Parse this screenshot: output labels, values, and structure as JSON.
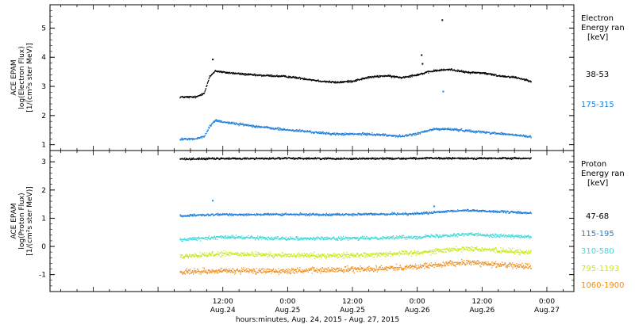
{
  "figure": {
    "xlabel": "hours:minutes, Aug. 24, 2015 - Aug. 27, 2015",
    "x_range": [
      "2015-08-23T04:00",
      "2015-08-27T05:00"
    ],
    "x_ticks": [
      {
        "time": "2015-08-24T12:00",
        "top": "12:00",
        "bottom": "Aug.24"
      },
      {
        "time": "2015-08-25T00:00",
        "top": "0:00",
        "bottom": "Aug.25"
      },
      {
        "time": "2015-08-25T12:00",
        "top": "12:00",
        "bottom": "Aug.25"
      },
      {
        "time": "2015-08-26T00:00",
        "top": "0:00",
        "bottom": "Aug.26"
      },
      {
        "time": "2015-08-26T12:00",
        "top": "12:00",
        "bottom": "Aug.26"
      },
      {
        "time": "2015-08-27T00:00",
        "top": "0:00",
        "bottom": "Aug.27"
      }
    ]
  },
  "chart_data": [
    {
      "type": "scatter",
      "ylabel_lines": [
        "ACE EPAM",
        "log(Electron Flux)",
        "[1/(cm²s ster MeV)]"
      ],
      "ylim": [
        0.8,
        5.8
      ],
      "yticks": [
        1,
        2,
        3,
        4,
        5
      ],
      "legend_title": [
        "Electron",
        "Energy ran",
        "[keV]"
      ],
      "series": [
        {
          "name": "38-53",
          "color": "#000000",
          "x": [
            "2015-08-24T04:00",
            "2015-08-24T07:00",
            "2015-08-24T08:30",
            "2015-08-24T09:30",
            "2015-08-24T10:30",
            "2015-08-24T12:00",
            "2015-08-24T15:00",
            "2015-08-24T18:00",
            "2015-08-24T21:00",
            "2015-08-25T00:00",
            "2015-08-25T03:00",
            "2015-08-25T06:00",
            "2015-08-25T09:00",
            "2015-08-25T12:00",
            "2015-08-25T15:00",
            "2015-08-25T18:00",
            "2015-08-25T21:00",
            "2015-08-26T00:00",
            "2015-08-26T03:00",
            "2015-08-26T06:00",
            "2015-08-26T09:00",
            "2015-08-26T12:00",
            "2015-08-26T15:00",
            "2015-08-26T18:00",
            "2015-08-26T21:00"
          ],
          "y": [
            2.65,
            2.65,
            2.8,
            3.35,
            3.55,
            3.5,
            3.45,
            3.4,
            3.38,
            3.35,
            3.28,
            3.2,
            3.15,
            3.2,
            3.33,
            3.38,
            3.32,
            3.42,
            3.55,
            3.6,
            3.5,
            3.48,
            3.38,
            3.33,
            3.2
          ]
        },
        {
          "name": "175-315",
          "color": "#1f7fd9",
          "x": [
            "2015-08-24T04:00",
            "2015-08-24T07:00",
            "2015-08-24T08:30",
            "2015-08-24T09:30",
            "2015-08-24T10:30",
            "2015-08-24T12:00",
            "2015-08-24T15:00",
            "2015-08-24T18:00",
            "2015-08-24T21:00",
            "2015-08-25T00:00",
            "2015-08-25T03:00",
            "2015-08-25T06:00",
            "2015-08-25T09:00",
            "2015-08-25T12:00",
            "2015-08-25T15:00",
            "2015-08-25T18:00",
            "2015-08-25T21:00",
            "2015-08-26T00:00",
            "2015-08-26T03:00",
            "2015-08-26T06:00",
            "2015-08-26T09:00",
            "2015-08-26T12:00",
            "2015-08-26T15:00",
            "2015-08-26T18:00",
            "2015-08-26T21:00"
          ],
          "y": [
            1.2,
            1.22,
            1.3,
            1.65,
            1.85,
            1.8,
            1.72,
            1.65,
            1.58,
            1.52,
            1.48,
            1.42,
            1.38,
            1.38,
            1.38,
            1.35,
            1.3,
            1.4,
            1.55,
            1.55,
            1.5,
            1.45,
            1.4,
            1.35,
            1.28
          ]
        }
      ],
      "spikes": [
        {
          "x": "2015-08-24T10:00",
          "y": 3.95,
          "color": "#000000"
        },
        {
          "x": "2015-08-26T00:40",
          "y": 4.1,
          "color": "#000000"
        },
        {
          "x": "2015-08-26T00:50",
          "y": 3.8,
          "color": "#000000"
        },
        {
          "x": "2015-08-26T04:30",
          "y": 5.3,
          "color": "#000000"
        },
        {
          "x": "2015-08-26T04:40",
          "y": 2.85,
          "color": "#1f7fd9"
        }
      ]
    },
    {
      "type": "scatter",
      "ylabel_lines": [
        "ACE EPAM",
        "log(Proton Flux)",
        "[1/(cm²s ster MeV)]"
      ],
      "ylim": [
        -1.6,
        3.4
      ],
      "yticks": [
        -1,
        0,
        1,
        2,
        3
      ],
      "legend_title": [
        "Proton",
        "Energy ran",
        "[keV]"
      ],
      "series": [
        {
          "name": "47-68",
          "color": "#000000",
          "x": [
            "2015-08-24T04:00",
            "2015-08-24T12:00",
            "2015-08-25T00:00",
            "2015-08-25T12:00",
            "2015-08-26T00:00",
            "2015-08-26T12:00",
            "2015-08-26T21:00"
          ],
          "y": [
            3.12,
            3.13,
            3.14,
            3.13,
            3.14,
            3.14,
            3.14
          ]
        },
        {
          "name": "115-195",
          "color": "#1f7fd9",
          "x": [
            "2015-08-24T04:00",
            "2015-08-24T12:00",
            "2015-08-25T00:00",
            "2015-08-25T12:00",
            "2015-08-26T00:00",
            "2015-08-26T09:00",
            "2015-08-26T21:00"
          ],
          "y": [
            1.1,
            1.15,
            1.15,
            1.15,
            1.18,
            1.3,
            1.2
          ]
        },
        {
          "name": "310-580",
          "color": "#3ed8d8",
          "x": [
            "2015-08-24T04:00",
            "2015-08-24T12:00",
            "2015-08-25T00:00",
            "2015-08-25T12:00",
            "2015-08-26T00:00",
            "2015-08-26T09:00",
            "2015-08-26T21:00"
          ],
          "y": [
            0.25,
            0.35,
            0.3,
            0.3,
            0.35,
            0.45,
            0.35
          ]
        },
        {
          "name": "795-1193",
          "color": "#c9e817",
          "x": [
            "2015-08-24T04:00",
            "2015-08-24T12:00",
            "2015-08-25T00:00",
            "2015-08-25T12:00",
            "2015-08-26T00:00",
            "2015-08-26T09:00",
            "2015-08-26T21:00"
          ],
          "y": [
            -0.35,
            -0.25,
            -0.3,
            -0.3,
            -0.2,
            -0.05,
            -0.2
          ]
        },
        {
          "name": "1060-1900",
          "color": "#f08c1a",
          "x": [
            "2015-08-24T04:00",
            "2015-08-24T12:00",
            "2015-08-25T00:00",
            "2015-08-25T12:00",
            "2015-08-26T00:00",
            "2015-08-26T09:00",
            "2015-08-26T21:00"
          ],
          "y": [
            -0.9,
            -0.85,
            -0.85,
            -0.8,
            -0.7,
            -0.55,
            -0.7
          ]
        }
      ],
      "spikes": [
        {
          "x": "2015-08-24T10:00",
          "y": 1.65,
          "color": "#1f7fd9"
        },
        {
          "x": "2015-08-26T03:00",
          "y": 1.45,
          "color": "#1f7fd9"
        }
      ]
    }
  ]
}
